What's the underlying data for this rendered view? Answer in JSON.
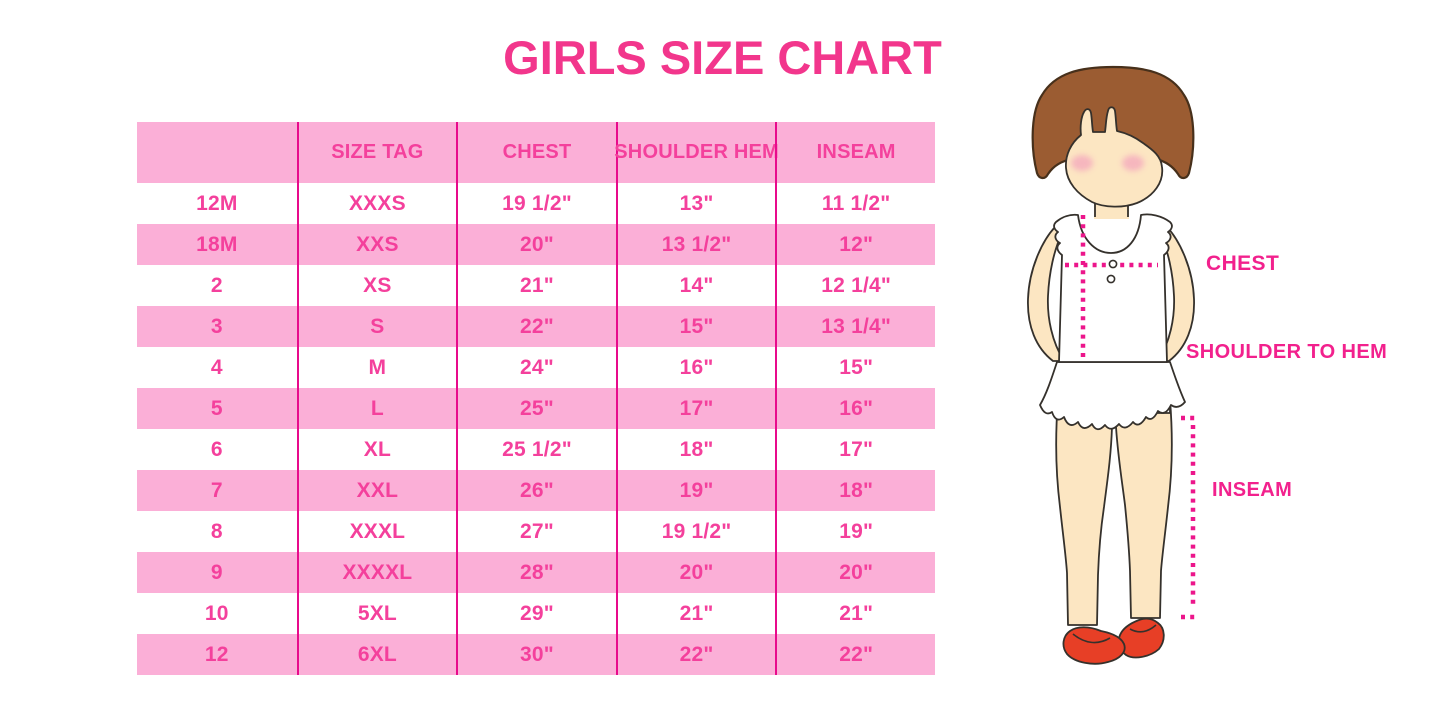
{
  "title": "GIRLS SIZE CHART",
  "colors": {
    "title_pink": "#F2368C",
    "row_pink": "#FBAFD7",
    "divider_magenta": "#E80A8C",
    "table_text_pink": "#F4409C",
    "label_magenta": "#F2218D",
    "dot_magenta": "#EC168B",
    "hair_brown": "#9B5C32",
    "skin_tone": "#FCE6C2",
    "blush_pink": "#F5AEBE",
    "shoe_red": "#E73F26"
  },
  "chart_data": {
    "type": "table",
    "title": "GIRLS SIZE CHART",
    "columns": [
      "",
      "SIZE TAG",
      "CHEST",
      "SHOULDER HEM",
      "INSEAM"
    ],
    "rows": [
      [
        "12M",
        "XXXS",
        "19 1/2\"",
        "13\"",
        "11 1/2\""
      ],
      [
        "18M",
        "XXS",
        "20\"",
        "13 1/2\"",
        "12\""
      ],
      [
        "2",
        "XS",
        "21\"",
        "14\"",
        "12 1/4\""
      ],
      [
        "3",
        "S",
        "22\"",
        "15\"",
        "13 1/4\""
      ],
      [
        "4",
        "M",
        "24\"",
        "16\"",
        "15\""
      ],
      [
        "5",
        "L",
        "25\"",
        "17\"",
        "16\""
      ],
      [
        "6",
        "XL",
        "25 1/2\"",
        "18\"",
        "17\""
      ],
      [
        "7",
        "XXL",
        "26\"",
        "19\"",
        "18\""
      ],
      [
        "8",
        "XXXL",
        "27\"",
        "19 1/2\"",
        "19\""
      ],
      [
        "9",
        "XXXXL",
        "28\"",
        "20\"",
        "20\""
      ],
      [
        "10",
        "5XL",
        "29\"",
        "21\"",
        "21\""
      ],
      [
        "12",
        "6XL",
        "30\"",
        "22\"",
        "22\""
      ]
    ]
  },
  "figure": {
    "labels": {
      "chest": "CHEST",
      "shoulder_to_hem": "SHOULDER TO HEM",
      "inseam": "INSEAM"
    }
  }
}
